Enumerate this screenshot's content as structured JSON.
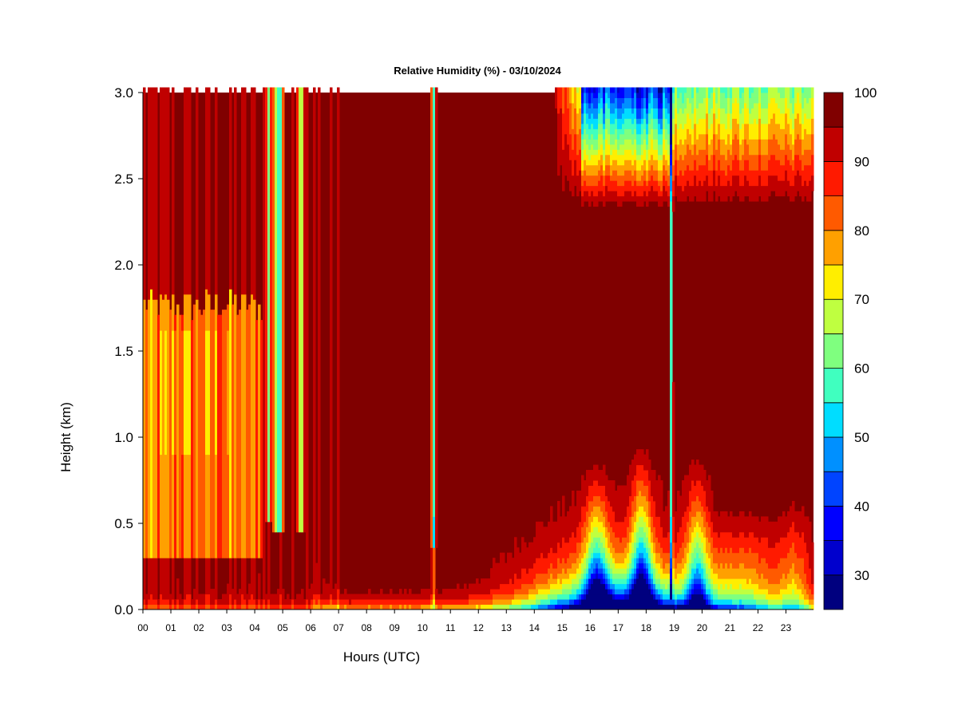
{
  "chart_data": {
    "type": "heatmap",
    "title": "Relative Humidity (%) - 03/10/2024",
    "xlabel": "Hours (UTC)",
    "ylabel": "Height (km)",
    "x_ticks": [
      "00",
      "01",
      "02",
      "03",
      "04",
      "05",
      "06",
      "07",
      "08",
      "09",
      "10",
      "11",
      "12",
      "13",
      "14",
      "15",
      "16",
      "17",
      "18",
      "19",
      "20",
      "21",
      "22",
      "23"
    ],
    "y_ticks": [
      "0.0",
      "0.5",
      "1.0",
      "1.5",
      "2.0",
      "2.5",
      "3.0"
    ],
    "xlim": [
      0,
      24
    ],
    "ylim": [
      0,
      3.0
    ],
    "colorbar": {
      "label_values": [
        "30",
        "40",
        "50",
        "60",
        "70",
        "80",
        "90",
        "100"
      ],
      "range": [
        25,
        100
      ],
      "levels": [
        25,
        30,
        35,
        40,
        45,
        50,
        55,
        60,
        65,
        70,
        75,
        80,
        85,
        90,
        95,
        100
      ],
      "colors": [
        "#00007f",
        "#0000cd",
        "#0000ff",
        "#0044ff",
        "#0090ff",
        "#00ddff",
        "#40ffbf",
        "#7fff7f",
        "#bfff40",
        "#ffee00",
        "#ffa000",
        "#ff5a00",
        "#ff1a00",
        "#c00000",
        "#800000"
      ]
    },
    "features": [
      {
        "description_hours": [
          0.0,
          4.2
        ],
        "height_km": [
          0.25,
          1.7
        ],
        "rh": 88
      },
      {
        "description_hours": [
          4.4,
          6.2
        ],
        "height_km": [
          0.45,
          3.0
        ],
        "rh": 55
      },
      {
        "description_hours": [
          10.2,
          10.4
        ],
        "height_km": [
          0.4,
          3.0
        ],
        "rh": 55
      },
      {
        "description_hours": [
          13.5,
          18.5
        ],
        "height_km": [
          0.0,
          0.8
        ],
        "rh": 50
      },
      {
        "description_hours": [
          15.5,
          18.5
        ],
        "height_km": [
          2.3,
          3.0
        ],
        "rh": 40
      },
      {
        "description_hours": [
          18.8,
          18.9
        ],
        "height_km": [
          0.0,
          3.0
        ],
        "rh": 60
      },
      {
        "description_hours": [
          19.0,
          24.0
        ],
        "height_km": [
          0.0,
          0.9
        ],
        "rh": 75
      },
      {
        "description_hours": [
          19.0,
          24.0
        ],
        "height_km": [
          2.5,
          3.0
        ],
        "rh": 70
      }
    ]
  }
}
